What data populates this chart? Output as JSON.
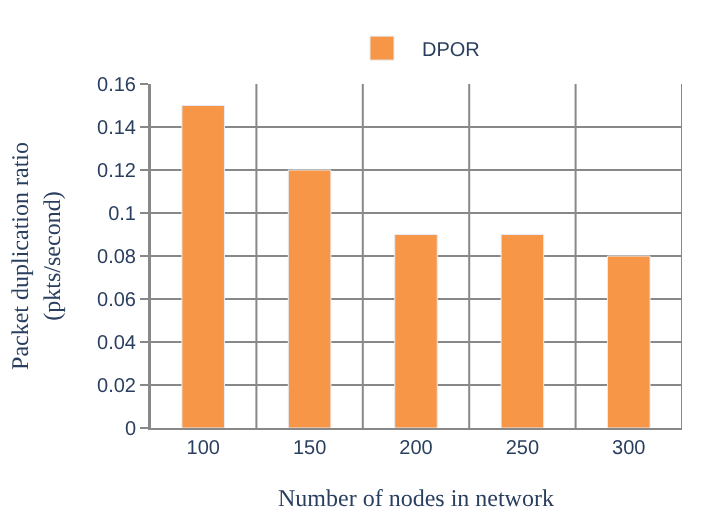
{
  "chart_data": {
    "type": "bar",
    "categories": [
      "100",
      "150",
      "200",
      "250",
      "300"
    ],
    "series": [
      {
        "name": "DPOR",
        "color": "#f79646",
        "values": [
          0.15,
          0.12,
          0.09,
          0.09,
          0.08
        ]
      }
    ],
    "xlabel": "Number of nodes in network",
    "ylabel": "Packet duplication ratio\n(pkts/second)",
    "ylim": [
      0,
      0.16
    ],
    "yticks": [
      0,
      0.02,
      0.04,
      0.06,
      0.08,
      0.1,
      0.12,
      0.14,
      0.16
    ],
    "grid": true,
    "legend": "top"
  }
}
